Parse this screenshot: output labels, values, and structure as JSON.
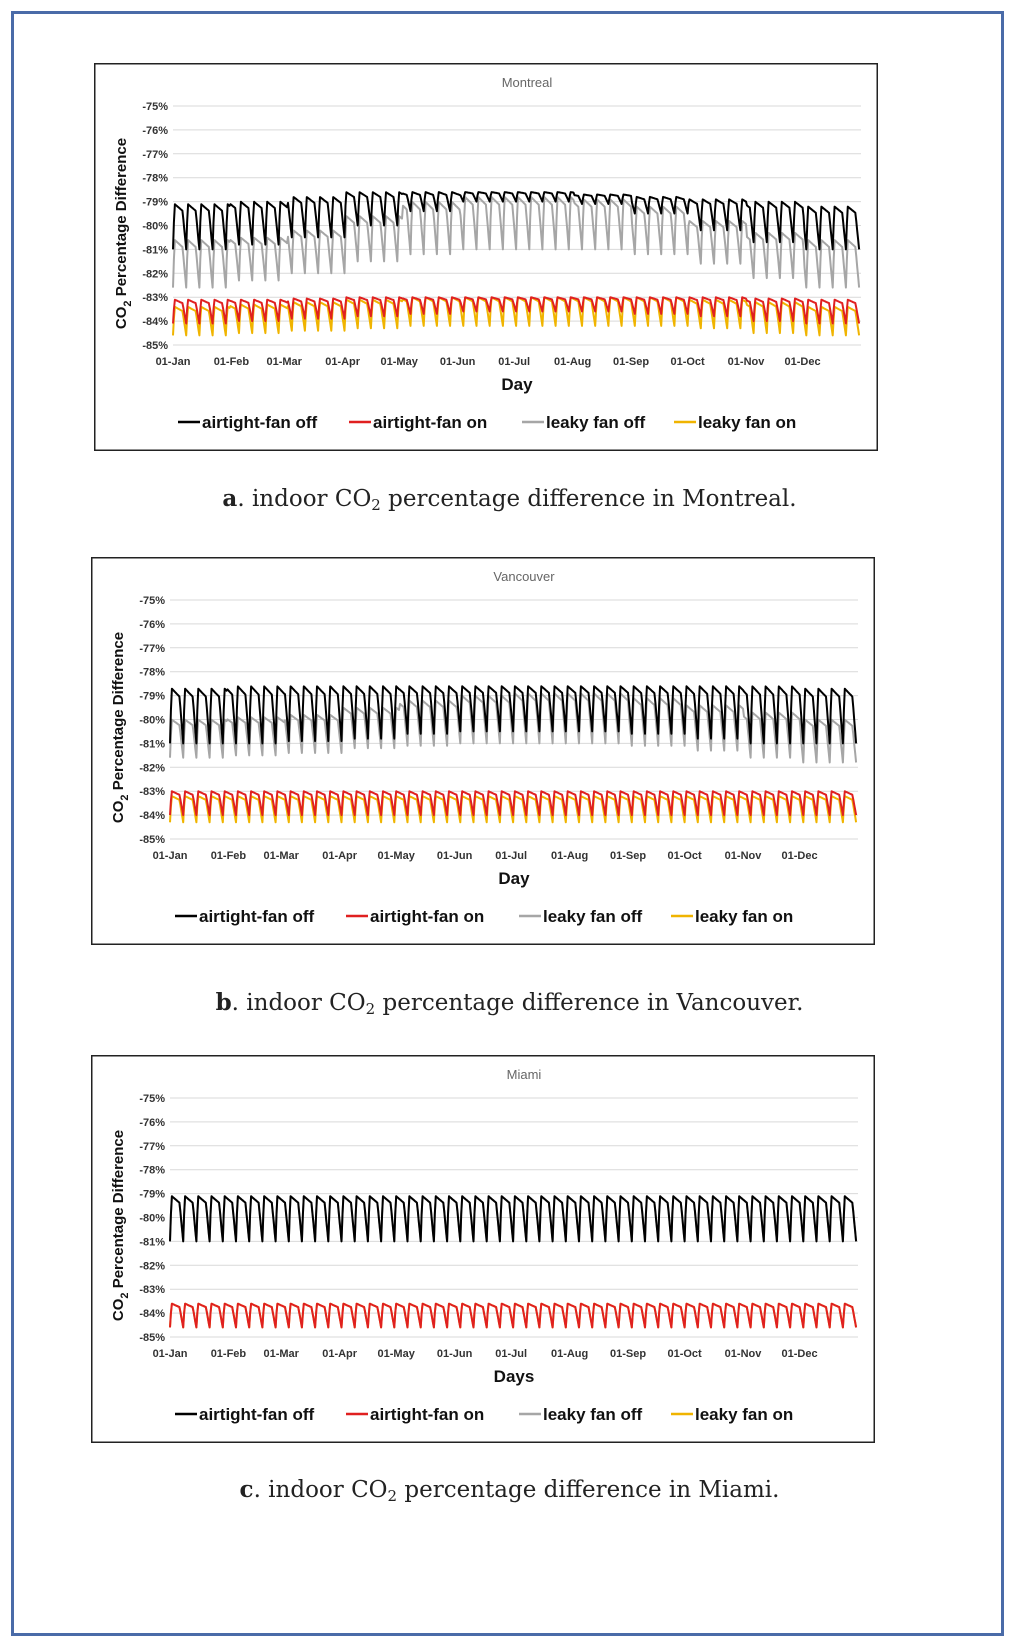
{
  "captions": [
    {
      "letter": "a",
      "pre": ". indoor CO",
      "sub": "2",
      "post": " percentage difference in Montreal."
    },
    {
      "letter": "b",
      "pre": ". indoor CO",
      "sub": "2",
      "post": " percentage difference in Vancouver."
    },
    {
      "letter": "c",
      "pre": ". indoor CO",
      "sub": "2",
      "post": " percentage difference in Miami."
    }
  ],
  "chart_data": [
    {
      "type": "line",
      "title": "Montreal",
      "xlabel": "Day",
      "ylabel_pre": "CO",
      "ylabel_sub": "2",
      "ylabel_post": " Percentage Difference",
      "ylim": [
        -85,
        -75
      ],
      "yticks": [
        "-75%",
        "-76%",
        "-77%",
        "-78%",
        "-79%",
        "-80%",
        "-81%",
        "-82%",
        "-83%",
        "-84%",
        "-85%"
      ],
      "xticks": [
        "01-Jan",
        "01-Feb",
        "01-Mar",
        "01-Apr",
        "01-May",
        "01-Jun",
        "01-Jul",
        "01-Aug",
        "01-Sep",
        "01-Oct",
        "01-Nov",
        "01-Dec"
      ],
      "xtick_days": [
        0,
        31,
        59,
        90,
        120,
        151,
        181,
        212,
        243,
        273,
        304,
        334
      ],
      "cycle_days": 7,
      "series": [
        {
          "name": "airtight-fan off",
          "color": "#000000",
          "peak": [
            -79.1,
            -79.0,
            -78.8,
            -78.6,
            -78.6,
            -78.6,
            -78.6,
            -78.7,
            -78.8,
            -78.9,
            -79.0,
            -79.2
          ],
          "trough": [
            -81.0,
            -80.8,
            -80.5,
            -80.0,
            -79.4,
            -79.0,
            -79.0,
            -79.1,
            -79.5,
            -80.2,
            -80.7,
            -81.0
          ]
        },
        {
          "name": "airtight-fan on",
          "color": "#e02020",
          "peak": [
            -83.1,
            -83.1,
            -83.05,
            -83.0,
            -83.0,
            -83.0,
            -83.0,
            -83.0,
            -83.0,
            -83.0,
            -83.05,
            -83.1
          ],
          "trough": [
            -84.1,
            -84.0,
            -83.9,
            -83.8,
            -83.7,
            -83.6,
            -83.6,
            -83.6,
            -83.7,
            -83.8,
            -84.0,
            -84.1
          ]
        },
        {
          "name": "leaky fan off",
          "color": "#a6a6a6",
          "peak": [
            -80.6,
            -80.5,
            -80.2,
            -79.6,
            -79.0,
            -78.8,
            -78.8,
            -78.9,
            -79.2,
            -79.8,
            -80.3,
            -80.6
          ],
          "trough": [
            -82.6,
            -82.3,
            -82.0,
            -81.5,
            -81.2,
            -81.0,
            -81.0,
            -81.0,
            -81.2,
            -81.6,
            -82.2,
            -82.6
          ]
        },
        {
          "name": "leaky fan on",
          "color": "#f0b400",
          "peak": [
            -83.4,
            -83.3,
            -83.2,
            -83.1,
            -83.0,
            -83.0,
            -83.0,
            -83.0,
            -83.0,
            -83.1,
            -83.2,
            -83.4
          ],
          "trough": [
            -84.6,
            -84.5,
            -84.4,
            -84.3,
            -84.2,
            -84.2,
            -84.2,
            -84.2,
            -84.2,
            -84.3,
            -84.5,
            -84.6
          ]
        }
      ]
    },
    {
      "type": "line",
      "title": "Vancouver",
      "xlabel": "Day",
      "ylabel_pre": "CO",
      "ylabel_sub": "2",
      "ylabel_post": " Percentage Difference",
      "ylim": [
        -85,
        -75
      ],
      "yticks": [
        "-75%",
        "-76%",
        "-77%",
        "-78%",
        "-79%",
        "-80%",
        "-81%",
        "-82%",
        "-83%",
        "-84%",
        "-85%"
      ],
      "xticks": [
        "01-Jan",
        "01-Feb",
        "01-Mar",
        "01-Apr",
        "01-May",
        "01-Jun",
        "01-Jul",
        "01-Aug",
        "01-Sep",
        "01-Oct",
        "01-Nov",
        "01-Dec"
      ],
      "xtick_days": [
        0,
        31,
        59,
        90,
        120,
        151,
        181,
        212,
        243,
        273,
        304,
        334
      ],
      "cycle_days": 7,
      "series": [
        {
          "name": "airtight-fan off",
          "color": "#000000",
          "peak": [
            -78.7,
            -78.6,
            -78.6,
            -78.6,
            -78.6,
            -78.6,
            -78.6,
            -78.6,
            -78.6,
            -78.6,
            -78.6,
            -78.7
          ],
          "trough": [
            -81.0,
            -81.0,
            -80.9,
            -80.8,
            -80.6,
            -80.5,
            -80.5,
            -80.5,
            -80.6,
            -80.8,
            -81.0,
            -81.0
          ]
        },
        {
          "name": "airtight-fan on",
          "color": "#e02020",
          "peak": [
            -83.0,
            -83.0,
            -83.0,
            -83.0,
            -83.0,
            -83.0,
            -83.0,
            -83.0,
            -83.0,
            -83.0,
            -83.0,
            -83.0
          ],
          "trough": [
            -84.0,
            -84.0,
            -84.0,
            -84.0,
            -84.0,
            -84.0,
            -84.0,
            -84.0,
            -84.0,
            -84.0,
            -84.0,
            -84.0
          ]
        },
        {
          "name": "leaky fan off",
          "color": "#a6a6a6",
          "peak": [
            -80.0,
            -79.9,
            -79.8,
            -79.5,
            -79.2,
            -79.0,
            -78.9,
            -78.9,
            -79.1,
            -79.4,
            -79.7,
            -80.0
          ],
          "trough": [
            -81.6,
            -81.5,
            -81.4,
            -81.2,
            -81.1,
            -81.0,
            -81.0,
            -81.0,
            -81.1,
            -81.3,
            -81.6,
            -81.8
          ]
        },
        {
          "name": "leaky fan on",
          "color": "#f0b400",
          "peak": [
            -83.2,
            -83.2,
            -83.2,
            -83.2,
            -83.2,
            -83.2,
            -83.2,
            -83.2,
            -83.2,
            -83.2,
            -83.2,
            -83.2
          ],
          "trough": [
            -84.3,
            -84.3,
            -84.3,
            -84.3,
            -84.3,
            -84.3,
            -84.3,
            -84.3,
            -84.3,
            -84.3,
            -84.3,
            -84.3
          ]
        }
      ]
    },
    {
      "type": "line",
      "title": "Miami",
      "xlabel": "Days",
      "ylabel_pre": "CO",
      "ylabel_sub": "2",
      "ylabel_post": " Percentage Difference",
      "ylim": [
        -85,
        -75
      ],
      "yticks": [
        "-75%",
        "-76%",
        "-77%",
        "-78%",
        "-79%",
        "-80%",
        "-81%",
        "-82%",
        "-83%",
        "-84%",
        "-85%"
      ],
      "xticks": [
        "01-Jan",
        "01-Feb",
        "01-Mar",
        "01-Apr",
        "01-May",
        "01-Jun",
        "01-Jul",
        "01-Aug",
        "01-Sep",
        "01-Oct",
        "01-Nov",
        "01-Dec"
      ],
      "xtick_days": [
        0,
        31,
        59,
        90,
        120,
        151,
        181,
        212,
        243,
        273,
        304,
        334
      ],
      "cycle_days": 7,
      "series": [
        {
          "name": "airtight-fan off",
          "color": "#000000",
          "peak": [
            -79.1,
            -79.1,
            -79.1,
            -79.1,
            -79.1,
            -79.1,
            -79.1,
            -79.1,
            -79.1,
            -79.1,
            -79.1,
            -79.1
          ],
          "trough": [
            -81.0,
            -81.0,
            -81.0,
            -81.0,
            -81.0,
            -81.0,
            -81.0,
            -81.0,
            -81.0,
            -81.0,
            -81.0,
            -81.0
          ]
        },
        {
          "name": "airtight-fan on",
          "color": "#e02020",
          "peak": [
            -83.6,
            -83.6,
            -83.6,
            -83.6,
            -83.6,
            -83.6,
            -83.6,
            -83.6,
            -83.6,
            -83.6,
            -83.6,
            -83.6
          ],
          "trough": [
            -84.6,
            -84.6,
            -84.6,
            -84.6,
            -84.6,
            -84.6,
            -84.6,
            -84.6,
            -84.6,
            -84.6,
            -84.6,
            -84.6
          ]
        },
        {
          "name": "leaky fan off",
          "color": "#a6a6a6",
          "peak": [
            -79.1,
            -79.1,
            -79.1,
            -79.1,
            -79.1,
            -79.1,
            -79.1,
            -79.1,
            -79.1,
            -79.1,
            -79.1,
            -79.1
          ],
          "trough": [
            -81.0,
            -81.0,
            -81.0,
            -81.0,
            -81.0,
            -81.0,
            -81.0,
            -81.0,
            -81.0,
            -81.0,
            -81.0,
            -81.0
          ]
        },
        {
          "name": "leaky fan on",
          "color": "#f0b400",
          "peak": [
            -83.6,
            -83.6,
            -83.6,
            -83.6,
            -83.6,
            -83.6,
            -83.6,
            -83.6,
            -83.6,
            -83.6,
            -83.6,
            -83.6
          ],
          "trough": [
            -84.6,
            -84.6,
            -84.6,
            -84.6,
            -84.6,
            -84.6,
            -84.6,
            -84.6,
            -84.6,
            -84.6,
            -84.6,
            -84.6
          ]
        }
      ]
    }
  ]
}
